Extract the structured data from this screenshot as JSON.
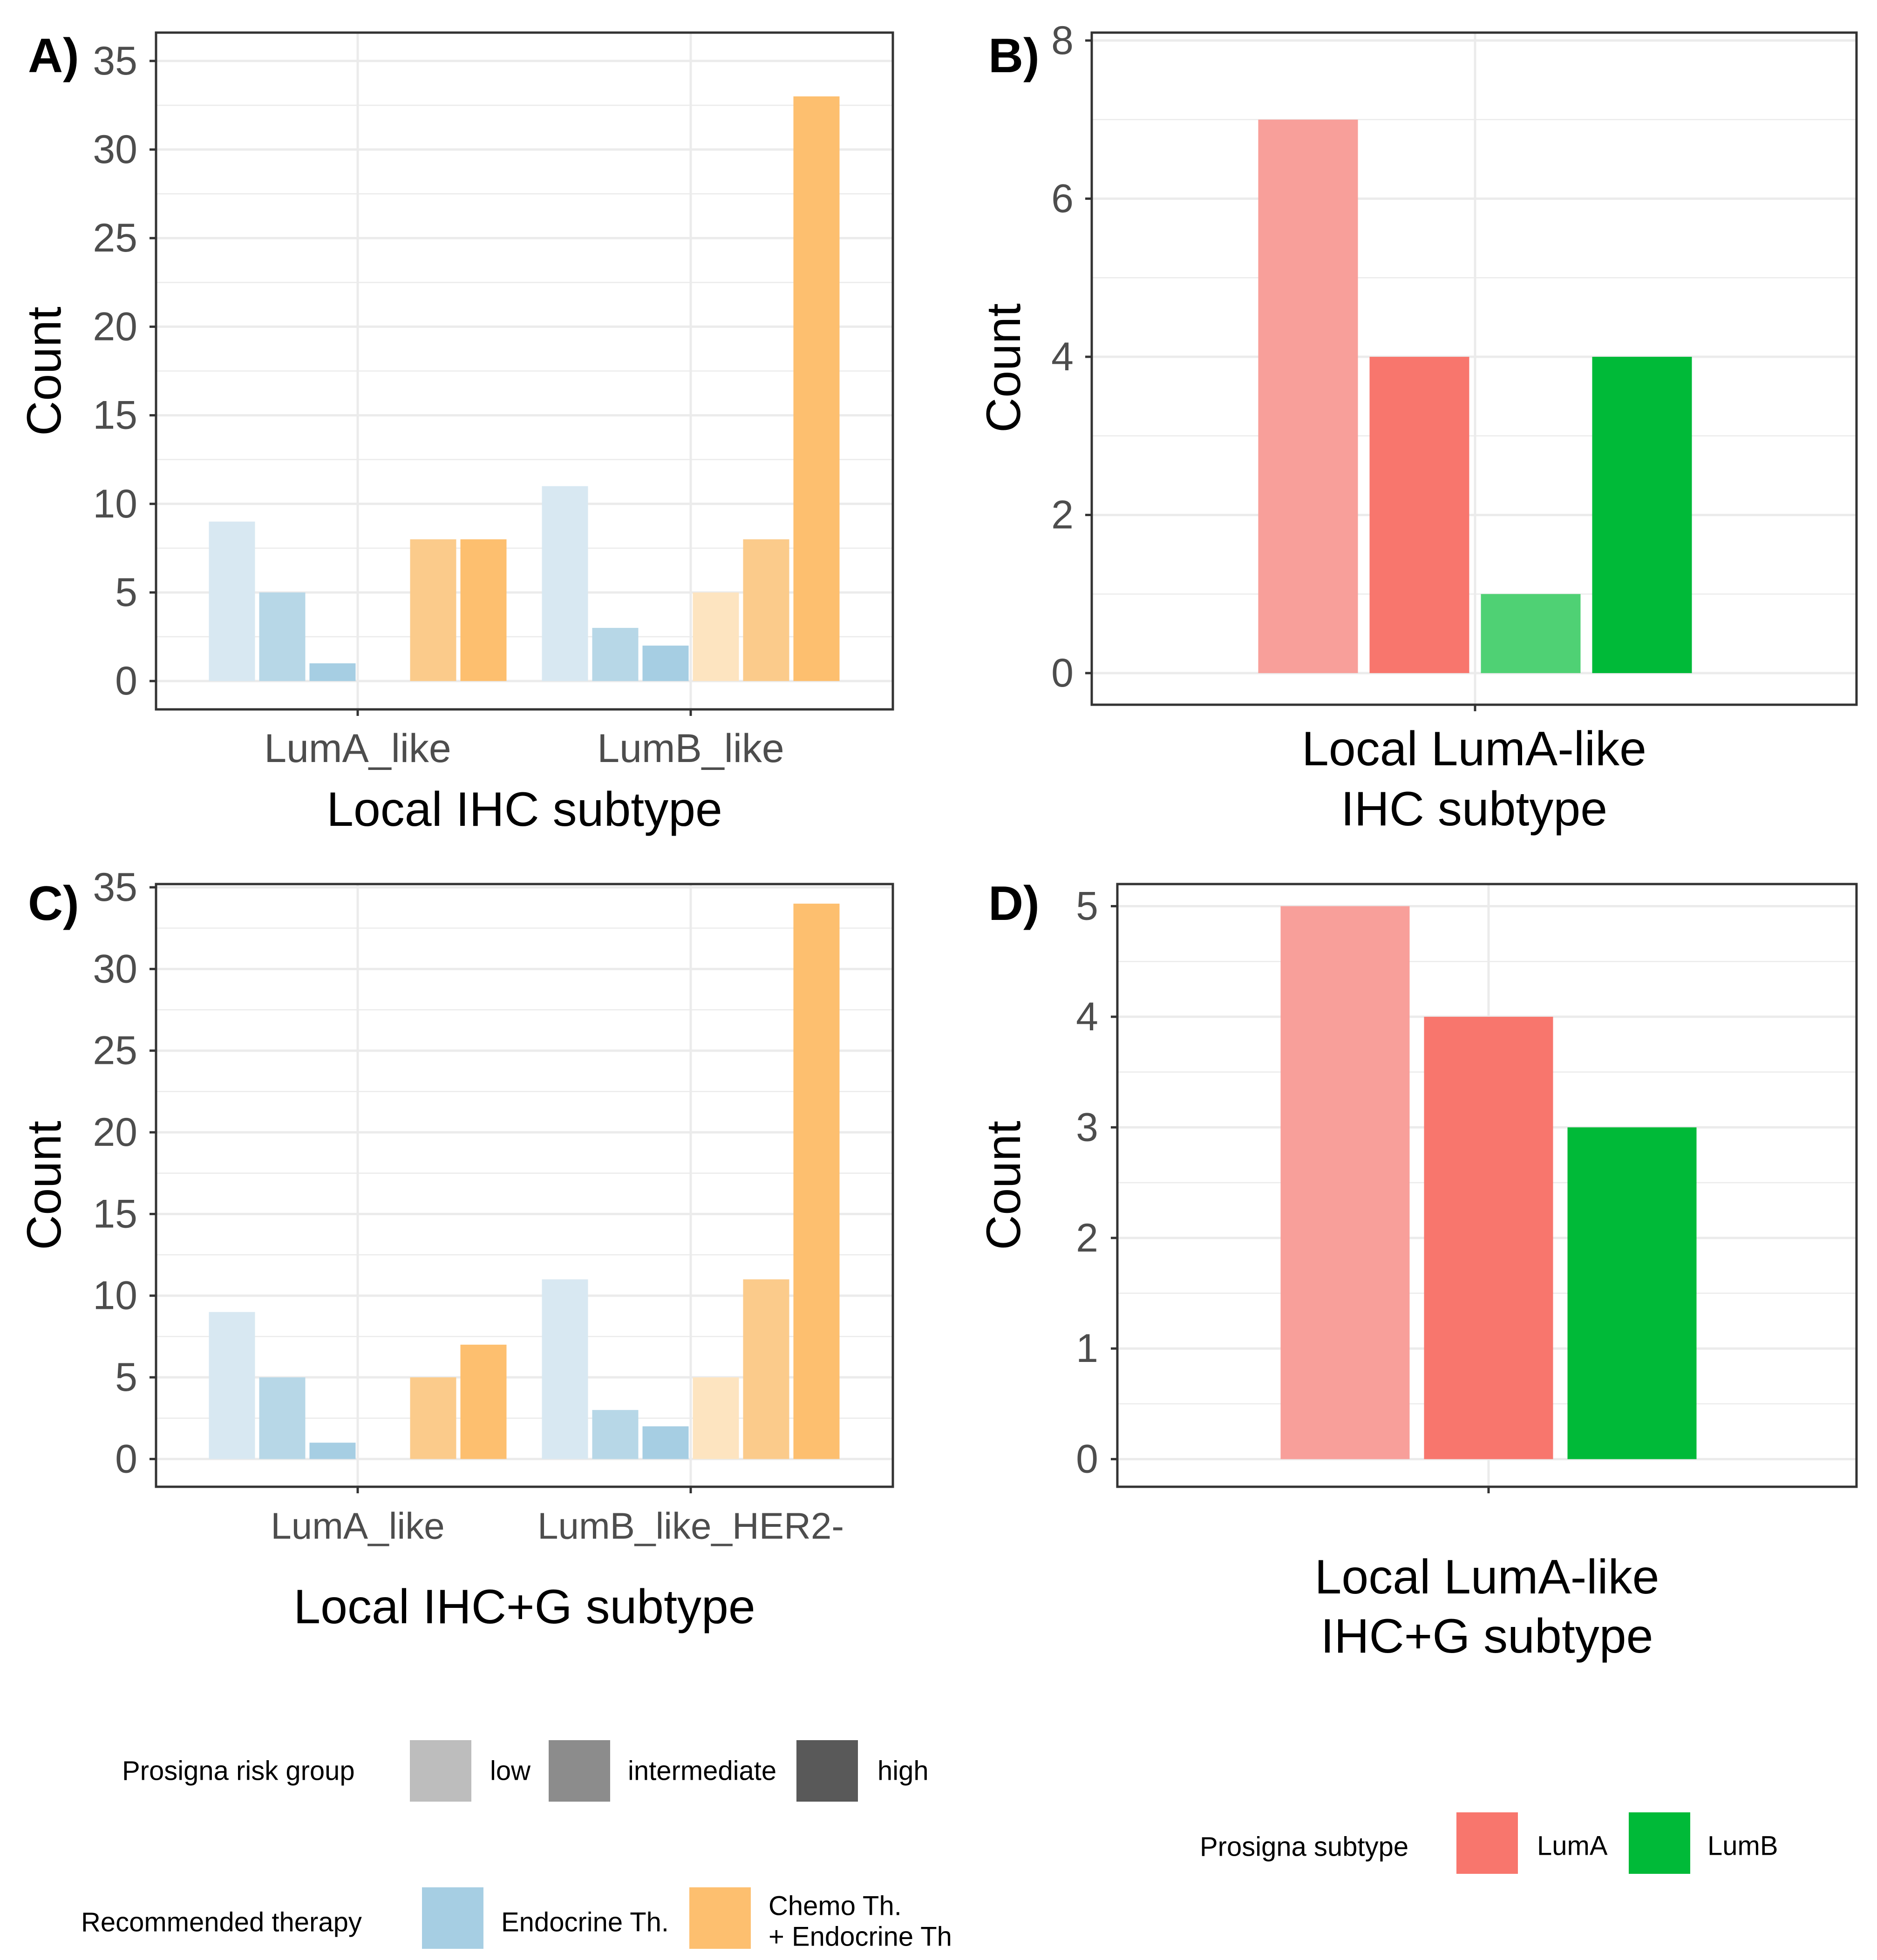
{
  "colors": {
    "endocrine": {
      "low": "#d8e8f2",
      "intermediate": "#b7d7e7",
      "high": "#a6cee3"
    },
    "chemo": {
      "low": "#fde4c0",
      "intermediate": "#fbcb8b",
      "high": "#fdbf6f"
    },
    "luma": {
      "low": "#f89f9a",
      "intermediate": "#f8766d"
    },
    "lumb": {
      "low": "#4fd174",
      "intermediate": "#00ba38"
    },
    "grid": "#ebebeb",
    "axis": "#333333",
    "text": "#4d4d4d"
  },
  "chart_data": [
    {
      "panel": "A)",
      "type": "bar",
      "categories": [
        "LumA_like",
        "LumB_like"
      ],
      "series": [
        {
          "name": "Endocrine Th. / low",
          "values": [
            9,
            11
          ]
        },
        {
          "name": "Endocrine Th. / intermediate",
          "values": [
            5,
            3
          ]
        },
        {
          "name": "Endocrine Th. / high",
          "values": [
            1,
            2
          ]
        },
        {
          "name": "Chemo Th. + Endocrine Th / low",
          "values": [
            null,
            5
          ]
        },
        {
          "name": "Chemo Th. + Endocrine Th / intermediate",
          "values": [
            8,
            8
          ]
        },
        {
          "name": "Chemo Th. + Endocrine Th / high",
          "values": [
            8,
            33
          ]
        }
      ],
      "xlabel": "Local IHC subtype",
      "ylabel": "Count",
      "ylim": [
        -1.6,
        36.6
      ],
      "yticks": [
        0,
        5,
        10,
        15,
        20,
        25,
        30,
        35
      ],
      "ytick_labels": [
        "0",
        "5",
        "10",
        "15",
        "20",
        "25",
        "30",
        "35"
      ]
    },
    {
      "panel": "B)",
      "type": "bar",
      "categories": [
        "Local LumA-like IHC subtype"
      ],
      "series": [
        {
          "name": "LumA / low",
          "values": [
            7
          ]
        },
        {
          "name": "LumA / intermediate",
          "values": [
            4
          ]
        },
        {
          "name": "LumB / low",
          "values": [
            1
          ]
        },
        {
          "name": "LumB / intermediate",
          "values": [
            4
          ]
        }
      ],
      "xlabel": [
        "Local LumA-like",
        "IHC subtype"
      ],
      "ylabel": "Count",
      "ylim": [
        -0.4,
        8.1
      ],
      "yticks": [
        0,
        2,
        4,
        6,
        8
      ],
      "ytick_labels": [
        "0",
        "2",
        "4",
        "6",
        "8"
      ]
    },
    {
      "panel": "C)",
      "type": "bar",
      "categories": [
        "LumA_like",
        "LumB_like_HER2-"
      ],
      "series": [
        {
          "name": "Endocrine Th. / low",
          "values": [
            9,
            11
          ]
        },
        {
          "name": "Endocrine Th. / intermediate",
          "values": [
            5,
            3
          ]
        },
        {
          "name": "Endocrine Th. / high",
          "values": [
            1,
            2
          ]
        },
        {
          "name": "Chemo Th. + Endocrine Th / low",
          "values": [
            null,
            5
          ]
        },
        {
          "name": "Chemo Th. + Endocrine Th / intermediate",
          "values": [
            5,
            11
          ]
        },
        {
          "name": "Chemo Th. + Endocrine Th / high",
          "values": [
            7,
            34
          ]
        }
      ],
      "xlabel": "Local IHC+G subtype",
      "ylabel": "Count",
      "ylim": [
        -1.7,
        35.2
      ],
      "yticks": [
        0,
        5,
        10,
        15,
        20,
        25,
        30,
        35
      ],
      "ytick_labels": [
        "0",
        "5",
        "10",
        "15",
        "20",
        "25",
        "30",
        "35"
      ]
    },
    {
      "panel": "D)",
      "type": "bar",
      "categories": [
        "Local LumA-like IHC+G subtype"
      ],
      "series": [
        {
          "name": "LumA / low",
          "values": [
            5
          ]
        },
        {
          "name": "LumA / intermediate",
          "values": [
            4
          ]
        },
        {
          "name": "LumB / intermediate",
          "values": [
            3
          ]
        }
      ],
      "xlabel": [
        "Local LumA-like",
        " IHC+G subtype"
      ],
      "ylabel": "Count",
      "ylim": [
        -0.25,
        5.2
      ],
      "yticks": [
        0,
        1,
        2,
        3,
        4,
        5
      ],
      "ytick_labels": [
        "0",
        "1",
        "2",
        "3",
        "4",
        "5"
      ]
    }
  ],
  "legends": {
    "risk": {
      "title": "Prosigna risk group",
      "items": [
        "low",
        "intermediate",
        "high"
      ],
      "swatch_colors": [
        "#bdbdbd",
        "#8c8c8c",
        "#595959"
      ]
    },
    "therapy": {
      "title": "Recommended therapy",
      "items": [
        "Endocrine Th.",
        [
          "Chemo Th.",
          " + Endocrine Th"
        ]
      ],
      "swatch_colors": [
        "#a6cee3",
        "#fdbf6f"
      ]
    },
    "subtype": {
      "title": "Prosigna subtype",
      "items": [
        "LumA",
        "LumB"
      ],
      "swatch_colors": [
        "#f8766d",
        "#00ba38"
      ]
    }
  }
}
